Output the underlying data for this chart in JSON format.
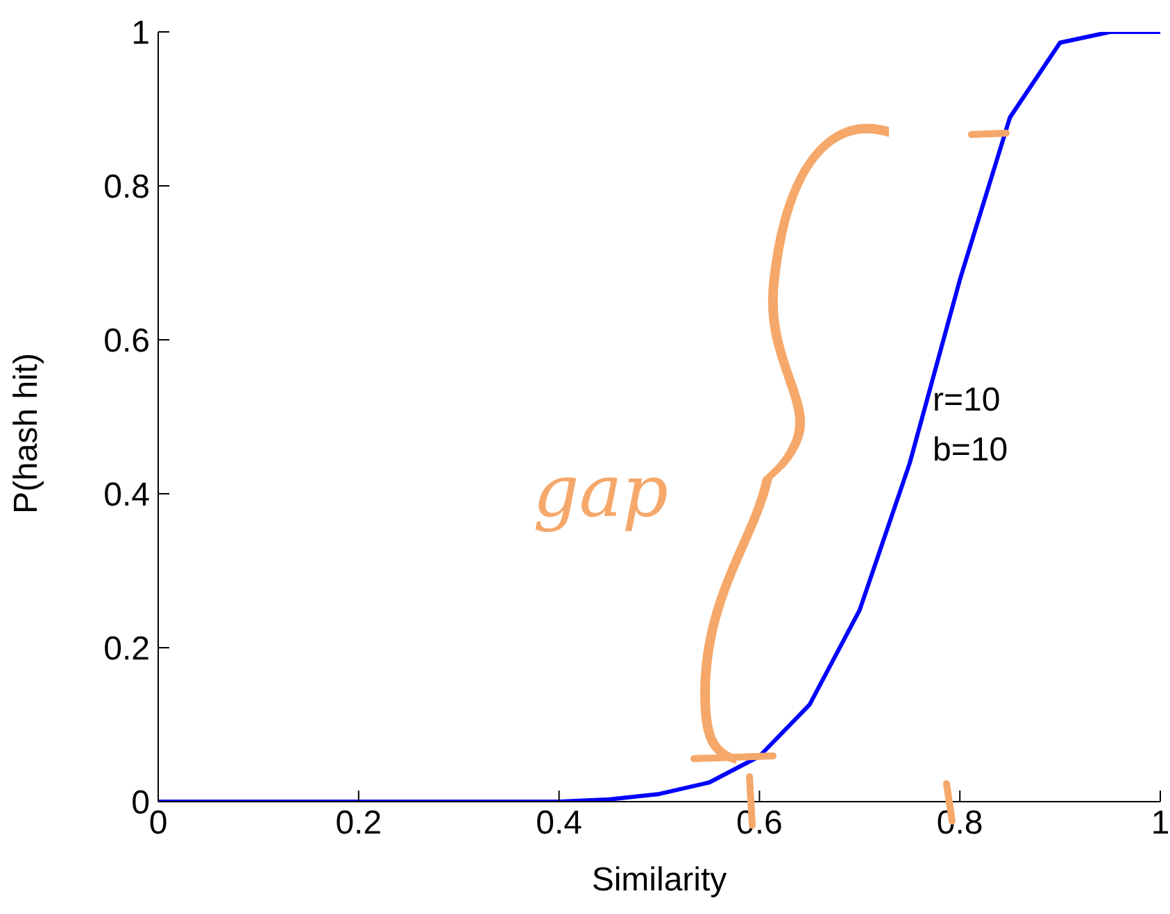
{
  "chart_data": {
    "type": "line",
    "xlabel": "Similarity",
    "ylabel": "P(hash hit)",
    "x": [
      0,
      0.1,
      0.2,
      0.3,
      0.4,
      0.45,
      0.5,
      0.55,
      0.6,
      0.65,
      0.7,
      0.75,
      0.8,
      0.85,
      0.9,
      0.95,
      1
    ],
    "series": [
      {
        "color": "#0000ff",
        "values": [
          0,
          0,
          0,
          0,
          0,
          0.003,
          0.01,
          0.025,
          0.059,
          0.126,
          0.249,
          0.44,
          0.678,
          0.889,
          0.986,
          1,
          1
        ]
      }
    ],
    "xlim": [
      0,
      1
    ],
    "ylim": [
      0,
      1
    ],
    "xticks": [
      0,
      0.2,
      0.4,
      0.6,
      0.8,
      1
    ],
    "yticks": [
      0,
      0.2,
      0.4,
      0.6,
      0.8,
      1
    ],
    "grid": false,
    "legend": false,
    "marker": "none",
    "line_style": "solid",
    "annotations": [
      "r=10",
      "b=10",
      "gap"
    ]
  }
}
